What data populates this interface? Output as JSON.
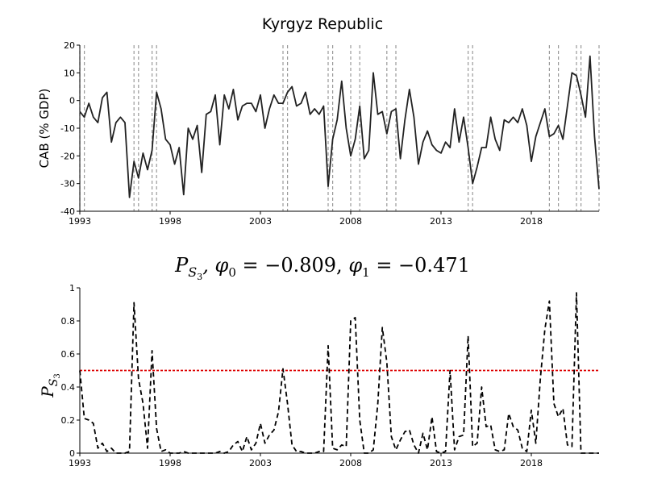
{
  "chart_data": [
    {
      "type": "line",
      "title": "Kyrgyz Republic",
      "xlabel": "",
      "ylabel": "CAB (% GDP)",
      "xlim": [
        1993.0,
        2021.75
      ],
      "ylim": [
        -40,
        20
      ],
      "xticks": [
        1993,
        1998,
        2003,
        2008,
        2013,
        2018
      ],
      "yticks": [
        -40,
        -30,
        -20,
        -10,
        0,
        10,
        20
      ],
      "grid": false,
      "series": [
        {
          "color": "#222222",
          "x": [
            1993.0,
            1993.25,
            1993.5,
            1993.75,
            1994.0,
            1994.25,
            1994.5,
            1994.75,
            1995.0,
            1995.25,
            1995.5,
            1995.75,
            1996.0,
            1996.25,
            1996.5,
            1996.75,
            1997.0,
            1997.25,
            1997.5,
            1997.75,
            1998.0,
            1998.25,
            1998.5,
            1998.75,
            1999.0,
            1999.25,
            1999.5,
            1999.75,
            2000.0,
            2000.25,
            2000.5,
            2000.75,
            2001.0,
            2001.25,
            2001.5,
            2001.75,
            2002.0,
            2002.25,
            2002.5,
            2002.75,
            2003.0,
            2003.25,
            2003.5,
            2003.75,
            2004.0,
            2004.25,
            2004.5,
            2004.75,
            2005.0,
            2005.25,
            2005.5,
            2005.75,
            2006.0,
            2006.25,
            2006.5,
            2006.75,
            2007.0,
            2007.25,
            2007.5,
            2007.75,
            2008.0,
            2008.25,
            2008.5,
            2008.75,
            2009.0,
            2009.25,
            2009.5,
            2009.75,
            2010.0,
            2010.25,
            2010.5,
            2010.75,
            2011.0,
            2011.25,
            2011.5,
            2011.75,
            2012.0,
            2012.25,
            2012.5,
            2012.75,
            2013.0,
            2013.25,
            2013.5,
            2013.75,
            2014.0,
            2014.25,
            2014.5,
            2014.75,
            2015.0,
            2015.25,
            2015.5,
            2015.75,
            2016.0,
            2016.25,
            2016.5,
            2016.75,
            2017.0,
            2017.25,
            2017.5,
            2017.75,
            2018.0,
            2018.25,
            2018.5,
            2018.75,
            2019.0,
            2019.25,
            2019.5,
            2019.75,
            2020.0,
            2020.25,
            2020.5,
            2020.75,
            2021.0,
            2021.25,
            2021.5,
            2021.75
          ],
          "values": [
            -4,
            -6,
            -1,
            -6,
            -8,
            1,
            3,
            -15,
            -8,
            -6,
            -8,
            -35,
            -22,
            -28,
            -19,
            -25,
            -18,
            3,
            -3,
            -14,
            -16,
            -23,
            -17,
            -34,
            -10,
            -14,
            -9,
            -26,
            -5,
            -4,
            2,
            -16,
            2,
            -3,
            4,
            -7,
            -2,
            -1,
            -1,
            -4,
            2,
            -10,
            -3,
            2,
            -1,
            -1,
            3,
            5,
            -2,
            -1,
            3,
            -5,
            -3,
            -5,
            -2,
            -31,
            -14,
            -7,
            7,
            -10,
            -20,
            -14,
            -2,
            -21,
            -18,
            10,
            -5,
            -4,
            -12,
            -4,
            -3,
            -21,
            -7,
            4,
            -6,
            -23,
            -15,
            -11,
            -16,
            -18,
            -19,
            -15,
            -17,
            -3,
            -15,
            -6,
            -17,
            -30,
            -24,
            -17,
            -17,
            -6,
            -14,
            -18,
            -7,
            -8,
            -6,
            -8,
            -3,
            -9,
            -22,
            -13,
            -8,
            -3,
            -13,
            -12,
            -9,
            -14,
            -2,
            10,
            9,
            2,
            -6,
            16,
            -13,
            -32
          ],
          "vlines": [
            1993.0,
            1993.25,
            1996.0,
            1996.25,
            1997.0,
            1997.25,
            2004.25,
            2004.5,
            2006.75,
            2007.0,
            2008.0,
            2008.5,
            2010.0,
            2010.5,
            2014.5,
            2014.75,
            2019.0,
            2019.5,
            2020.5,
            2020.75,
            2021.75
          ]
        }
      ]
    },
    {
      "type": "line",
      "title": "$P_{S_3}, \\phi_0 = -0.809, \\phi_1 = -0.471$",
      "title_parts": {
        "p": "P",
        "s": "S",
        "sub3": "3",
        "sep": ", ",
        "phi0": "φ",
        "zero": "0",
        "phi0_val": " = −0.809, ",
        "phi1": "φ",
        "one": "1",
        "phi1_val": " = −0.471"
      },
      "xlabel": "",
      "ylabel": "P_{S_3}",
      "ylabel_parts": {
        "p": "P",
        "s": "S",
        "sub3": "3"
      },
      "xlim": [
        1993.0,
        2021.75
      ],
      "ylim": [
        0,
        1
      ],
      "xticks": [
        1993,
        1998,
        2003,
        2008,
        2013,
        2018
      ],
      "yticks": [
        0,
        0.2,
        0.4,
        0.6,
        0.8,
        1
      ],
      "ytick_labels": [
        "0",
        "0.2",
        "0.4",
        "0.6",
        "0.8",
        "1"
      ],
      "grid": false,
      "threshold": 0.5,
      "threshold_color": "#dd0000",
      "series": [
        {
          "color": "#000000",
          "style": "dashed",
          "x": [
            1993.0,
            1993.25,
            1993.5,
            1993.75,
            1994.0,
            1994.25,
            1994.5,
            1994.75,
            1995.0,
            1995.25,
            1995.5,
            1995.75,
            1996.0,
            1996.25,
            1996.5,
            1996.75,
            1997.0,
            1997.25,
            1997.5,
            1997.75,
            1998.0,
            1998.25,
            1998.5,
            1998.75,
            1999.0,
            1999.25,
            1999.5,
            1999.75,
            2000.0,
            2000.25,
            2000.5,
            2000.75,
            2001.0,
            2001.25,
            2001.5,
            2001.75,
            2002.0,
            2002.25,
            2002.5,
            2002.75,
            2003.0,
            2003.25,
            2003.5,
            2003.75,
            2004.0,
            2004.25,
            2004.5,
            2004.75,
            2005.0,
            2005.25,
            2005.5,
            2005.75,
            2006.0,
            2006.25,
            2006.5,
            2006.75,
            2007.0,
            2007.25,
            2007.5,
            2007.75,
            2008.0,
            2008.25,
            2008.5,
            2008.75,
            2009.0,
            2009.25,
            2009.5,
            2009.75,
            2010.0,
            2010.25,
            2010.5,
            2010.75,
            2011.0,
            2011.25,
            2011.5,
            2011.75,
            2012.0,
            2012.25,
            2012.5,
            2012.75,
            2013.0,
            2013.25,
            2013.5,
            2013.75,
            2014.0,
            2014.25,
            2014.5,
            2014.75,
            2015.0,
            2015.25,
            2015.5,
            2015.75,
            2016.0,
            2016.25,
            2016.5,
            2016.75,
            2017.0,
            2017.25,
            2017.5,
            2017.75,
            2018.0,
            2018.25,
            2018.5,
            2018.75,
            2019.0,
            2019.25,
            2019.5,
            2019.75,
            2020.0,
            2020.25,
            2020.5,
            2020.75,
            2021.0,
            2021.25,
            2021.5,
            2021.75
          ],
          "values": [
            0.5,
            0.21,
            0.2,
            0.18,
            0.03,
            0.06,
            0.01,
            0.03,
            0.0,
            0.0,
            0.0,
            0.01,
            0.91,
            0.45,
            0.3,
            0.03,
            0.62,
            0.15,
            0.01,
            0.02,
            0.0,
            0.0,
            0.0,
            0.01,
            0.0,
            0.0,
            0.0,
            0.0,
            0.0,
            0.0,
            0.0,
            0.01,
            0.0,
            0.01,
            0.05,
            0.07,
            0.01,
            0.1,
            0.02,
            0.06,
            0.18,
            0.06,
            0.11,
            0.14,
            0.25,
            0.51,
            0.3,
            0.05,
            0.01,
            0.01,
            0.0,
            0.0,
            0.0,
            0.01,
            0.01,
            0.65,
            0.03,
            0.02,
            0.05,
            0.04,
            0.8,
            0.82,
            0.2,
            0.0,
            0.0,
            0.02,
            0.3,
            0.76,
            0.55,
            0.1,
            0.02,
            0.08,
            0.13,
            0.14,
            0.05,
            0.0,
            0.12,
            0.02,
            0.22,
            0.01,
            0.0,
            0.01,
            0.5,
            0.02,
            0.1,
            0.11,
            0.71,
            0.04,
            0.06,
            0.4,
            0.16,
            0.17,
            0.02,
            0.01,
            0.02,
            0.24,
            0.16,
            0.14,
            0.03,
            0.01,
            0.26,
            0.06,
            0.45,
            0.75,
            0.92,
            0.3,
            0.22,
            0.27,
            0.05,
            0.04,
            0.97,
            0.0,
            0.0,
            0.0,
            0.0,
            0.0
          ]
        }
      ]
    }
  ]
}
